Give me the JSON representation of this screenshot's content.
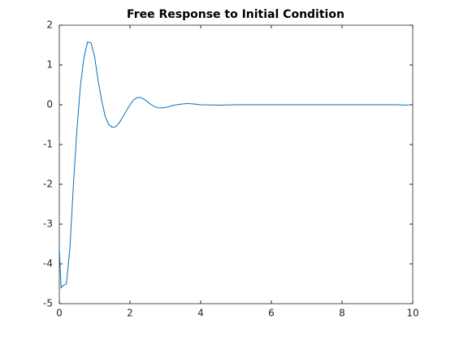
{
  "chart_data": {
    "type": "line",
    "title": "Free Response to Initial Condition",
    "x": [
      0,
      0.05,
      0.1,
      0.2,
      0.3,
      0.4,
      0.5,
      0.6,
      0.7,
      0.8,
      0.9,
      1.0,
      1.1,
      1.2,
      1.3,
      1.4,
      1.5,
      1.6,
      1.7,
      1.8,
      1.9,
      2.0,
      2.1,
      2.2,
      2.3,
      2.4,
      2.5,
      2.6,
      2.7,
      2.8,
      2.9,
      3.0,
      3.2,
      3.4,
      3.6,
      3.8,
      4.0,
      4.5,
      5,
      5.5,
      6,
      6.5,
      7,
      7.5,
      8,
      8.5,
      9,
      9.5,
      9.9
    ],
    "series": [
      {
        "color": "#0072bd",
        "values": [
          -3.6,
          -4.6,
          -4.55,
          -4.5,
          -3.6,
          -2.0,
          -0.6,
          0.5,
          1.2,
          1.58,
          1.55,
          1.2,
          0.6,
          0.1,
          -0.3,
          -0.5,
          -0.57,
          -0.55,
          -0.45,
          -0.3,
          -0.15,
          0.0,
          0.12,
          0.18,
          0.18,
          0.14,
          0.07,
          0.0,
          -0.05,
          -0.08,
          -0.08,
          -0.07,
          -0.02,
          0.01,
          0.03,
          0.02,
          0.0,
          -0.01,
          0.0,
          0.0,
          0.0,
          0.0,
          0.0,
          0.0,
          0.0,
          0.0,
          0.0,
          0.0,
          -0.01
        ]
      }
    ],
    "xlim": [
      0,
      10
    ],
    "xticks": [
      0,
      2,
      4,
      6,
      8,
      10
    ],
    "ylim": [
      -5,
      2
    ],
    "yticks": [
      -5,
      -4,
      -3,
      -2,
      -1,
      0,
      1,
      2
    ],
    "grid": false
  }
}
